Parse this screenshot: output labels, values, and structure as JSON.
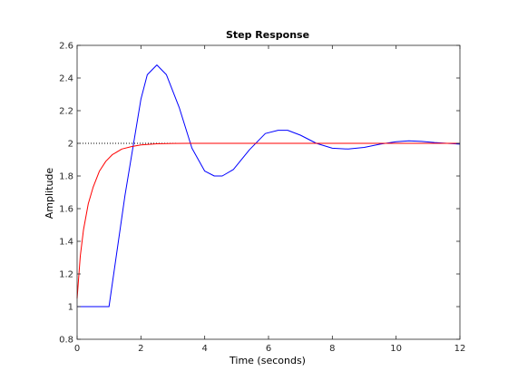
{
  "chart_data": {
    "type": "line",
    "title": "Step Response",
    "xlabel": "Time (seconds)",
    "ylabel": "Amplitude",
    "xlim": [
      0,
      12
    ],
    "ylim": [
      0.8,
      2.6
    ],
    "xticks": [
      0,
      2,
      4,
      6,
      8,
      10,
      12
    ],
    "yticks": [
      0.8,
      1,
      1.2,
      1.4,
      1.6,
      1.8,
      2,
      2.2,
      2.4,
      2.6
    ],
    "ytick_labels": [
      "0.8",
      "1",
      "1.2",
      "1.4",
      "1.6",
      "1.8",
      "2",
      "2.2",
      "2.4",
      "2.6"
    ],
    "grid": false,
    "reference_line": {
      "y": 2,
      "x_end": 3.1,
      "color": "#000000",
      "style": "dotted"
    },
    "series": [
      {
        "color": "#0000ff",
        "x": [
          0,
          1,
          1.5,
          2,
          2.2,
          2.5,
          2.8,
          3.2,
          3.6,
          4.0,
          4.3,
          4.55,
          4.9,
          5.4,
          5.9,
          6.3,
          6.6,
          7.0,
          7.5,
          8.0,
          8.5,
          9.0,
          9.5,
          10.0,
          10.4,
          10.8,
          11.2,
          11.6,
          12.0
        ],
        "y": [
          1.0,
          1.0,
          1.68,
          2.27,
          2.42,
          2.48,
          2.42,
          2.22,
          1.97,
          1.83,
          1.8,
          1.8,
          1.84,
          1.96,
          2.06,
          2.08,
          2.08,
          2.05,
          2.0,
          1.97,
          1.965,
          1.975,
          1.995,
          2.01,
          2.015,
          2.012,
          2.005,
          2.0,
          1.995
        ]
      },
      {
        "color": "#ff0000",
        "x": [
          0,
          0.1,
          0.2,
          0.35,
          0.5,
          0.7,
          0.9,
          1.1,
          1.4,
          1.7,
          2.0,
          2.5,
          3.0,
          3.5,
          4.0,
          5.0,
          6.0,
          8.0,
          10.0,
          12.0
        ],
        "y": [
          1.05,
          1.31,
          1.47,
          1.63,
          1.73,
          1.83,
          1.89,
          1.93,
          1.965,
          1.98,
          1.99,
          1.997,
          1.999,
          2.0,
          2.0,
          2.0,
          2.0,
          2.0,
          2.0,
          2.0
        ]
      }
    ]
  }
}
